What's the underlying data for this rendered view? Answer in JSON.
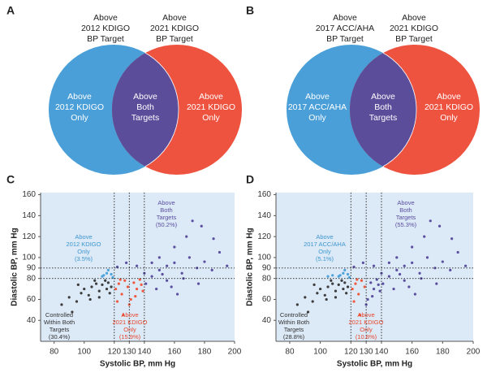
{
  "venn_panels": [
    {
      "letter": "A",
      "top_labels": [
        [
          "Above",
          "2012 KDIGO",
          "BP Target"
        ],
        [
          "Above",
          "2021 KDIGO",
          "BP Target"
        ]
      ],
      "region_labels": [
        [
          "Above",
          "2012 KDIGO",
          "Only"
        ],
        [
          "Above",
          "Both",
          "Targets"
        ],
        [
          "Above",
          "2021 KDIGO",
          "Only"
        ]
      ],
      "colors": [
        "#4a9fd8",
        "#5b4d9a",
        "#ee5340"
      ]
    },
    {
      "letter": "B",
      "top_labels": [
        [
          "Above",
          "2017 ACC/AHA",
          "BP Target"
        ],
        [
          "Above",
          "2021 KDIGO",
          "BP Target"
        ]
      ],
      "region_labels": [
        [
          "Above",
          "2017 ACC/AHA",
          "Only"
        ],
        [
          "Above",
          "Both",
          "Targets"
        ],
        [
          "Above",
          "2021 KDIGO",
          "Only"
        ]
      ],
      "colors": [
        "#4a9fd8",
        "#5b4d9a",
        "#ee5340"
      ]
    }
  ],
  "chart_data": [
    {
      "type": "scatter",
      "label": "C",
      "x_label": "Systolic BP, mm Hg",
      "y_label": "Diastolic BP, mm Hg",
      "xlim": [
        71,
        200
      ],
      "ylim": [
        20,
        162
      ],
      "xticks": [
        80,
        100,
        120,
        130,
        140,
        160,
        180,
        200
      ],
      "yticks": [
        40,
        60,
        80,
        90,
        100,
        120,
        140,
        160
      ],
      "xlines": [
        120,
        130,
        140
      ],
      "ylines": [
        80,
        90
      ],
      "background": "#dce9f6",
      "series": [
        {
          "color": "#3d3d3d",
          "x": [
            85,
            90,
            95,
            98,
            100,
            103,
            105,
            108,
            110,
            112,
            114,
            115,
            116,
            118,
            104,
            96,
            92,
            110,
            117,
            107
          ],
          "y": [
            55,
            62,
            58,
            66,
            70,
            64,
            72,
            75,
            68,
            74,
            78,
            70,
            76,
            72,
            60,
            74,
            48,
            62,
            66,
            78
          ]
        },
        {
          "color": "#4fa3dc",
          "x": [
            112,
            115,
            118,
            116,
            119,
            113
          ],
          "y": [
            82,
            85,
            84,
            88,
            81,
            83
          ]
        },
        {
          "color": "#f05a40",
          "x": [
            121,
            123,
            125,
            127,
            129,
            131,
            133,
            135,
            137,
            139,
            122,
            126,
            130,
            134,
            138,
            124
          ],
          "y": [
            70,
            75,
            65,
            78,
            72,
            60,
            76,
            70,
            79,
            68,
            58,
            45,
            55,
            63,
            74,
            79
          ]
        },
        {
          "color": "#5a4fa0",
          "x": [
            141,
            145,
            150,
            155,
            160,
            165,
            170,
            175,
            180,
            185,
            190,
            145,
            150,
            155,
            160,
            168,
            172,
            178,
            135,
            128,
            122,
            148,
            158,
            162,
            140,
            152,
            195,
            186,
            166,
            176
          ],
          "y": [
            75,
            82,
            88,
            92,
            95,
            85,
            100,
            90,
            96,
            88,
            105,
            95,
            100,
            78,
            110,
            120,
            135,
            130,
            92,
            95,
            91,
            70,
            72,
            65,
            85,
            84,
            92,
            118,
            80,
            75
          ]
        }
      ],
      "annotations": [
        {
          "lines": [
            "Above",
            "2012 KDIGO",
            "Only",
            "(3.5%)"
          ],
          "color": "#3e97d1"
        },
        {
          "lines": [
            "Above",
            "Both",
            "Targets",
            "(50.2%)"
          ],
          "color": "#5a4fa0"
        },
        {
          "lines": [
            "Controlled",
            "Within Both",
            "Targets",
            "(30.4%)"
          ],
          "color": "#333333"
        },
        {
          "lines": [
            "Above",
            "2021 KDIGO",
            "Only",
            "(15.9%)"
          ],
          "color": "#e8462c"
        }
      ]
    },
    {
      "type": "scatter",
      "label": "D",
      "x_label": "Systolic BP, mm Hg",
      "y_label": "Diastolic BP, mm Hg",
      "xlim": [
        71,
        200
      ],
      "ylim": [
        20,
        162
      ],
      "xticks": [
        80,
        100,
        120,
        130,
        140,
        160,
        180,
        200
      ],
      "yticks": [
        40,
        60,
        80,
        90,
        100,
        120,
        140,
        160
      ],
      "xlines": [
        120,
        130,
        140
      ],
      "ylines": [
        80,
        90
      ],
      "background": "#dce9f6",
      "series": [
        {
          "color": "#3d3d3d",
          "x": [
            85,
            90,
            95,
            98,
            100,
            103,
            105,
            108,
            110,
            112,
            114,
            115,
            116,
            118,
            104,
            96,
            92,
            110,
            117,
            107
          ],
          "y": [
            55,
            62,
            58,
            66,
            70,
            64,
            72,
            75,
            68,
            74,
            78,
            70,
            76,
            72,
            60,
            74,
            48,
            62,
            66,
            78
          ]
        },
        {
          "color": "#4fa3dc",
          "x": [
            112,
            115,
            118,
            116,
            119,
            113,
            108,
            105
          ],
          "y": [
            82,
            85,
            84,
            88,
            81,
            83,
            83,
            82
          ]
        },
        {
          "color": "#f05a40",
          "x": [
            121,
            123,
            125,
            127,
            129,
            122,
            126,
            124
          ],
          "y": [
            70,
            75,
            65,
            78,
            72,
            58,
            45,
            79
          ]
        },
        {
          "color": "#5a4fa0",
          "x": [
            131,
            133,
            135,
            137,
            139,
            130,
            134,
            138,
            141,
            145,
            150,
            155,
            160,
            165,
            170,
            175,
            180,
            185,
            190,
            145,
            150,
            155,
            160,
            168,
            172,
            178,
            135,
            128,
            122,
            148,
            158,
            162,
            140,
            152,
            195,
            186,
            166,
            176
          ],
          "y": [
            60,
            76,
            70,
            79,
            68,
            55,
            63,
            74,
            75,
            82,
            88,
            92,
            95,
            85,
            100,
            90,
            96,
            88,
            105,
            95,
            100,
            78,
            110,
            120,
            135,
            130,
            92,
            95,
            91,
            70,
            72,
            65,
            85,
            84,
            92,
            118,
            80,
            75
          ]
        }
      ],
      "annotations": [
        {
          "lines": [
            "Above",
            "2017 ACC/AHA",
            "Only",
            "(5.1%)"
          ],
          "color": "#3e97d1"
        },
        {
          "lines": [
            "Above",
            "Both",
            "Targets",
            "(55.3%)"
          ],
          "color": "#5a4fa0"
        },
        {
          "lines": [
            "Controlled",
            "Within Both",
            "Targets",
            "(28.8%)"
          ],
          "color": "#333333"
        },
        {
          "lines": [
            "Above",
            "2021 KDIGO",
            "Only",
            "(10.8%)"
          ],
          "color": "#e8462c"
        }
      ]
    }
  ]
}
